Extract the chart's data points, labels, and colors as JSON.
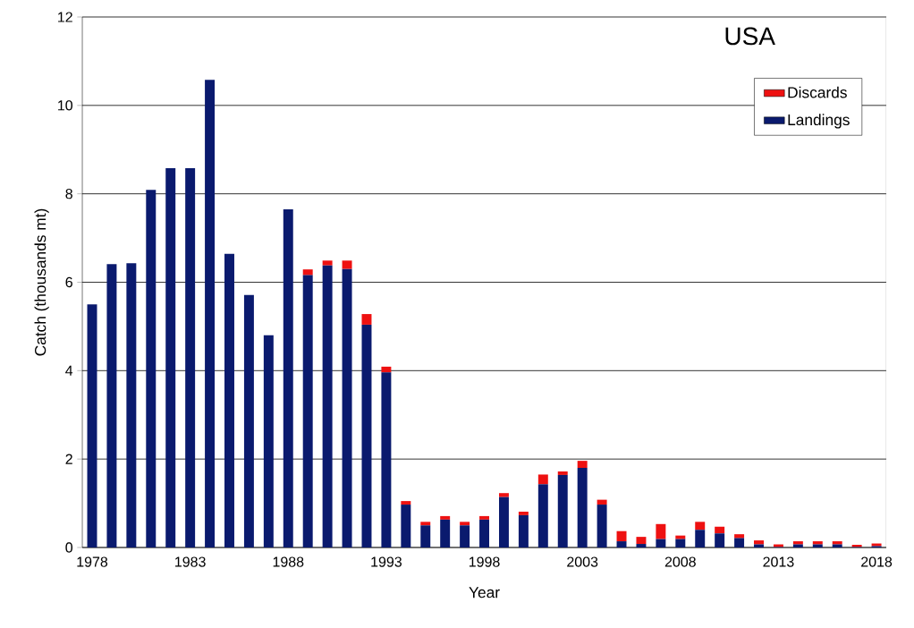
{
  "chart_data": {
    "type": "bar",
    "title": "USA",
    "xlabel": "Year",
    "ylabel": "Catch (thousands mt)",
    "categories": [
      "1978",
      null,
      null,
      null,
      null,
      "1983",
      null,
      null,
      null,
      null,
      "1988",
      null,
      null,
      null,
      null,
      "1993",
      null,
      null,
      null,
      null,
      "1998",
      null,
      null,
      null,
      null,
      "2003",
      null,
      null,
      null,
      null,
      "2008",
      null,
      null,
      null,
      null,
      "2013",
      null,
      null,
      null,
      null,
      "2018"
    ],
    "series": [
      {
        "name": "Landings",
        "color": "#0a1a6e",
        "values": [
          5.5,
          6.41,
          6.43,
          8.09,
          8.58,
          8.58,
          10.58,
          6.64,
          5.71,
          4.8,
          7.65,
          6.16,
          6.38,
          6.3,
          5.04,
          3.96,
          0.97,
          0.5,
          0.63,
          0.5,
          0.63,
          1.14,
          0.73,
          1.43,
          1.64,
          1.8,
          0.97,
          0.14,
          0.08,
          0.19,
          0.19,
          0.4,
          0.32,
          0.21,
          0.07,
          0.01,
          0.07,
          0.07,
          0.07,
          0.01,
          0.03
        ]
      },
      {
        "name": "Discards",
        "color": "#ee1111",
        "values": [
          0,
          0,
          0,
          0,
          0,
          0,
          0,
          0,
          0,
          0,
          0,
          0.13,
          0.11,
          0.19,
          0.24,
          0.13,
          0.08,
          0.08,
          0.08,
          0.08,
          0.08,
          0.09,
          0.08,
          0.22,
          0.08,
          0.16,
          0.11,
          0.23,
          0.16,
          0.34,
          0.08,
          0.18,
          0.15,
          0.09,
          0.09,
          0.06,
          0.07,
          0.07,
          0.07,
          0.05,
          0.06
        ]
      }
    ],
    "stacked": true,
    "ylim": [
      0,
      12
    ],
    "yticks": [
      0,
      2,
      4,
      6,
      8,
      10,
      12
    ],
    "grid": "y",
    "legend": "top right"
  }
}
